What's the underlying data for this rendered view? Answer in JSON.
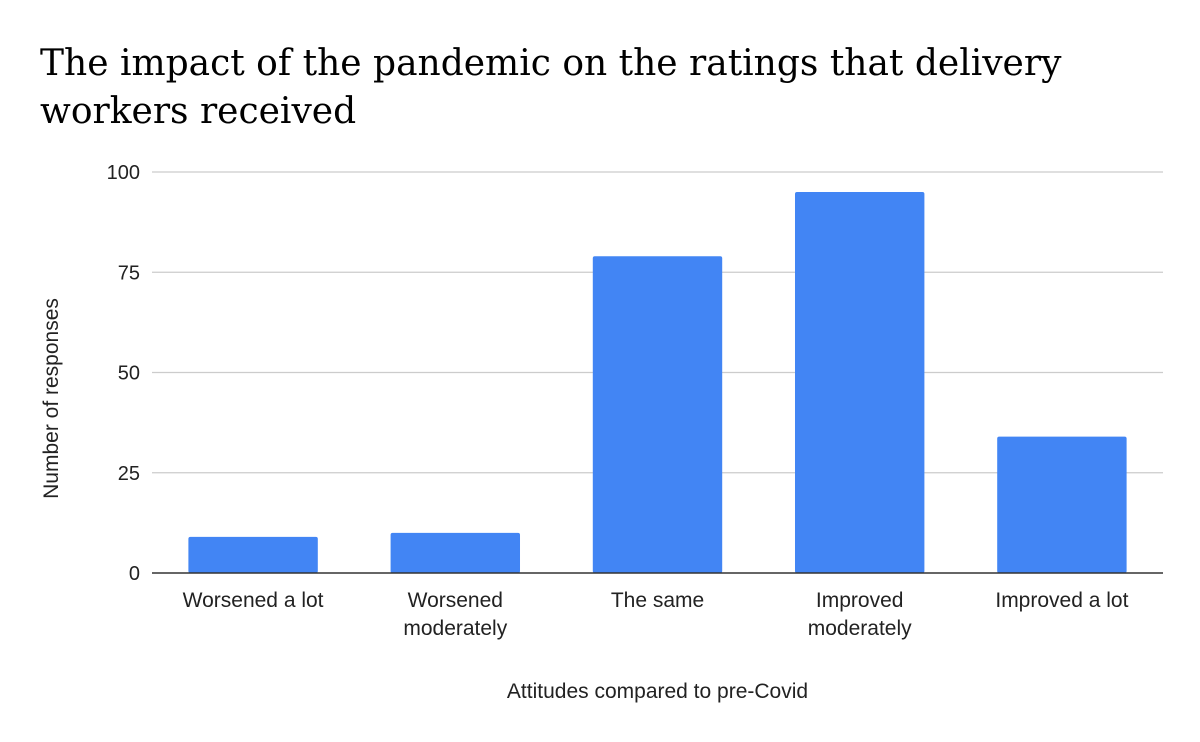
{
  "chart_data": {
    "type": "bar",
    "title": "The impact of the pandemic on the ratings that delivery workers received",
    "xlabel": "Attitudes compared to pre-Covid",
    "ylabel": "Number of responses",
    "categories": [
      [
        "Worsened a lot"
      ],
      [
        "Worsened",
        "moderately"
      ],
      [
        "The same"
      ],
      [
        "Improved",
        "moderately"
      ],
      [
        "Improved a lot"
      ]
    ],
    "values": [
      9,
      10,
      79,
      95,
      34
    ],
    "ylim": [
      0,
      100
    ],
    "yticks": [
      0,
      25,
      50,
      75,
      100
    ],
    "grid": true,
    "legend": "none",
    "colors": {
      "bar": "#4285f4",
      "grid": "#cccccc",
      "axis": "#333333"
    }
  }
}
